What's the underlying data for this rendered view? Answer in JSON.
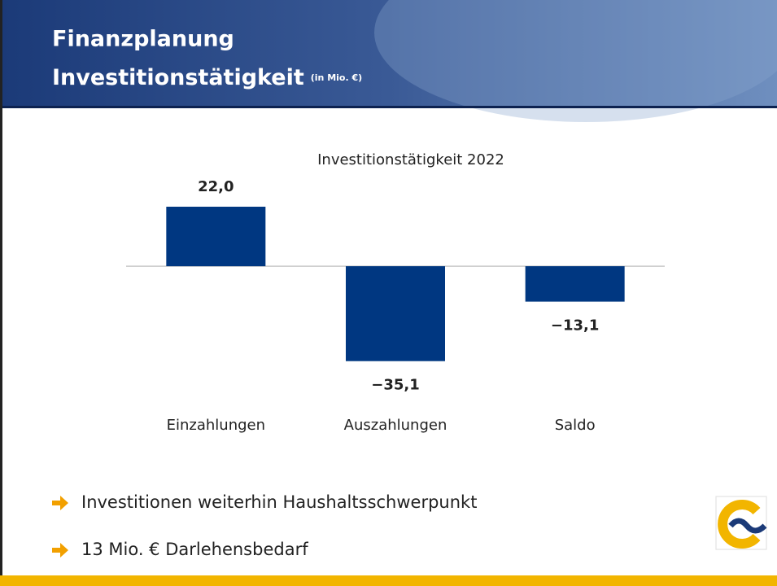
{
  "header": {
    "title": "Finanzplanung",
    "subtitle": "Investitionstätigkeit",
    "unit": "(in Mio. €)"
  },
  "chart_data": {
    "type": "bar",
    "title": "Investitionstätigkeit 2022",
    "categories": [
      "Einzahlungen",
      "Auszahlungen",
      "Saldo"
    ],
    "values": [
      22.0,
      -35.1,
      -13.1
    ],
    "value_labels": [
      "22,0",
      "−35,1",
      "−13,1"
    ],
    "color": "#003781",
    "ylim": [
      -40,
      25
    ]
  },
  "bullets": [
    "Investitionen weiterhin Haushaltsschwerpunkt",
    "13 Mio. € Darlehensbedarf"
  ]
}
